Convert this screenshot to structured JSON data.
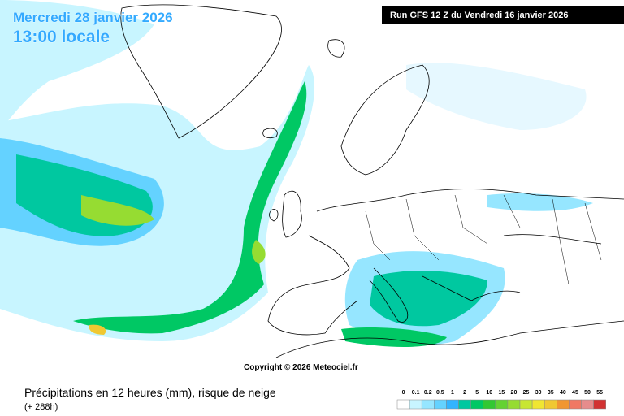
{
  "header": {
    "date": "Mercredi 28 janvier 2026",
    "time": "13:00 locale",
    "run": "Run GFS 12 Z du Vendredi 16 janvier 2026"
  },
  "map": {
    "copyright": "Copyright © 2026 Meteociel.fr"
  },
  "footer": {
    "title": "Précipitations en 12 heures (mm), risque de neige",
    "lead": "(+ 288h)"
  },
  "legend": {
    "labels": [
      "0",
      "0.1",
      "0.2",
      "0.5",
      "1",
      "2",
      "5",
      "10",
      "15",
      "20",
      "25",
      "30",
      "35",
      "40",
      "45",
      "50",
      "55"
    ],
    "colors": [
      "#ffffff",
      "#c8f5ff",
      "#96e6ff",
      "#64d2ff",
      "#32b4ff",
      "#00c8a0",
      "#00c864",
      "#32c832",
      "#64d232",
      "#96dc32",
      "#c8e632",
      "#f0e632",
      "#f0c832",
      "#f09632",
      "#f07864",
      "#e68c8c",
      "#d23232"
    ]
  }
}
